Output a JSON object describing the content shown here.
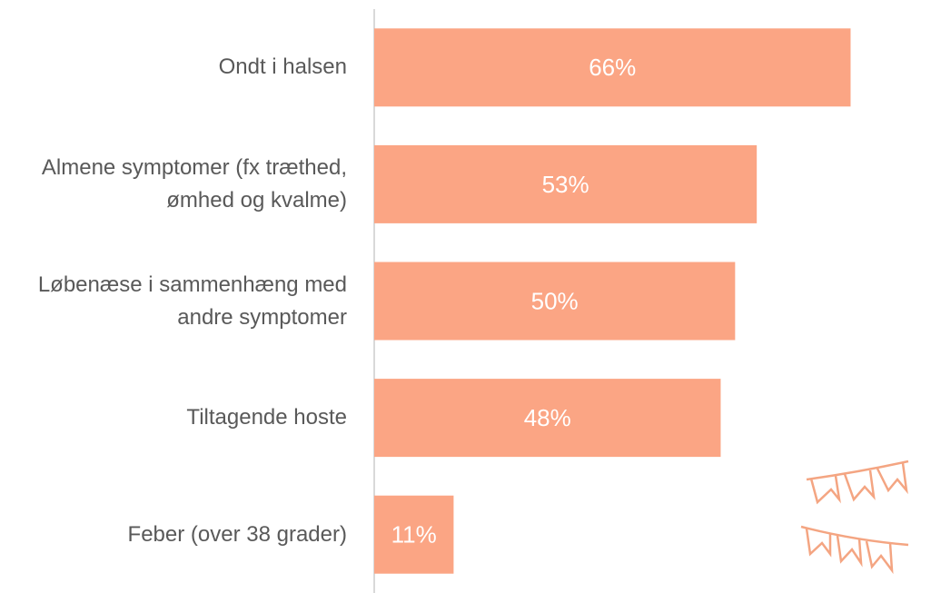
{
  "chart_data": {
    "type": "bar",
    "orientation": "horizontal",
    "categories": [
      "Ondt i halsen",
      "Almene symptomer (fx træthed, ømhed og kvalme)",
      "Løbenæse i sammenhæng med andre symptomer",
      "Tiltagende hoste",
      "Feber (over 38 grader)"
    ],
    "values": [
      66,
      53,
      50,
      48,
      11
    ],
    "value_labels": [
      "66%",
      "53%",
      "50%",
      "48%",
      "11%"
    ],
    "color": "#fba584",
    "xlim": [
      0,
      75
    ]
  }
}
